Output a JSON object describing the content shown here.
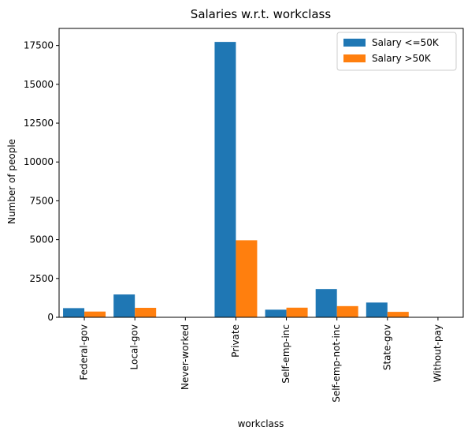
{
  "chart_data": {
    "type": "bar",
    "title": "Salaries w.r.t. workclass",
    "xlabel": "workclass",
    "ylabel": "Number of people",
    "categories": [
      "Federal-gov",
      "Local-gov",
      "Never-worked",
      "Private",
      "Self-emp-inc",
      "Self-emp-not-inc",
      "State-gov",
      "Without-pay"
    ],
    "series": [
      {
        "name": "Salary <=50K",
        "color": "#1f77b4",
        "values": [
          590,
          1470,
          7,
          17730,
          490,
          1820,
          950,
          14
        ]
      },
      {
        "name": "Salary >50K",
        "color": "#ff7f0e",
        "values": [
          370,
          610,
          0,
          4960,
          620,
          720,
          350,
          0
        ]
      }
    ],
    "ylim": [
      0,
      18600
    ],
    "yticks": [
      0,
      2500,
      5000,
      7500,
      10000,
      12500,
      15000,
      17500
    ],
    "ytick_labels": [
      "0",
      "2500",
      "5000",
      "7500",
      "10000",
      "12500",
      "15000",
      "17500"
    ],
    "legend_position": "upper-right",
    "grid": false
  }
}
